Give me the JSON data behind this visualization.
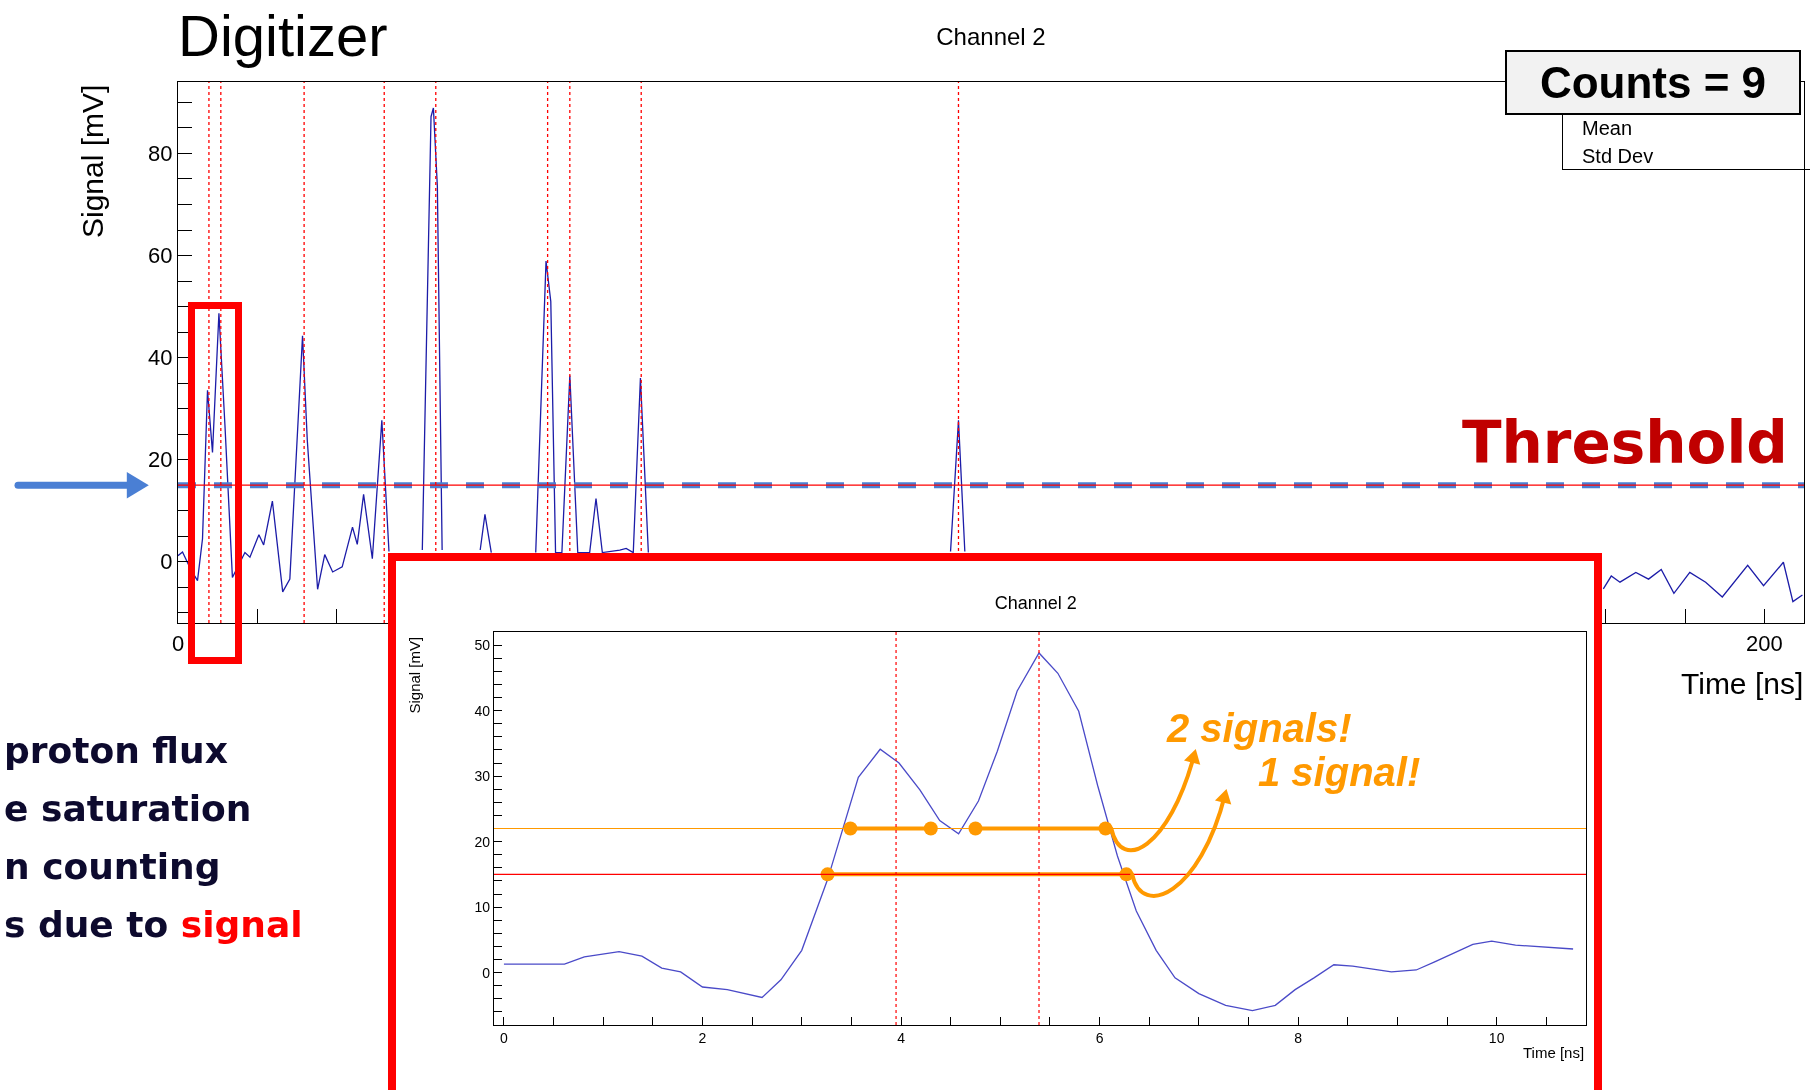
{
  "chart_data": [
    {
      "type": "line",
      "title": "Channel 2",
      "xlabel": "Time [ns]",
      "ylabel": "Signal [mV]",
      "xlim": [
        0,
        205
      ],
      "ylim": [
        -12,
        94
      ],
      "xticks": [
        0,
        {
          "value": 10,
          "label": null
        },
        {
          "value": 20,
          "label": null
        },
        {
          "value": 30,
          "label": null
        },
        {
          "value": 40,
          "label": null
        },
        {
          "value": 50,
          "label": null
        },
        {
          "value": 60,
          "label": null
        },
        {
          "value": 70,
          "label": null
        },
        {
          "value": 80,
          "label": null
        },
        {
          "value": 90,
          "label": null
        },
        {
          "value": 100,
          "label": null
        },
        {
          "value": 110,
          "label": null
        },
        {
          "value": 120,
          "label": null
        },
        {
          "value": 130,
          "label": null
        },
        {
          "value": 140,
          "label": null
        },
        {
          "value": 150,
          "label": null
        },
        {
          "value": 160,
          "label": null
        },
        {
          "value": 170,
          "label": null
        },
        {
          "value": 180,
          "label": null
        },
        {
          "value": 190,
          "label": null
        },
        200
      ],
      "yticks": [
        {
          "value": -10,
          "label": null
        },
        {
          "value": -5,
          "label": null
        },
        0,
        {
          "value": 5,
          "label": null
        },
        {
          "value": 10,
          "label": null
        },
        {
          "value": 15,
          "label": null
        },
        20,
        {
          "value": 25,
          "label": null
        },
        {
          "value": 30,
          "label": null
        },
        {
          "value": 35,
          "label": null
        },
        40,
        {
          "value": 45,
          "label": null
        },
        {
          "value": 50,
          "label": null
        },
        {
          "value": 55,
          "label": null
        },
        60,
        {
          "value": 65,
          "label": null
        },
        {
          "value": 70,
          "label": null
        },
        {
          "value": 75,
          "label": null
        },
        80,
        {
          "value": 85,
          "label": null
        },
        {
          "value": 90,
          "label": null
        }
      ],
      "series": [
        {
          "color": "#1c1ca8",
          "x": [
            0,
            0.57,
            1.64,
            2.46,
            3.09,
            3.72,
            4.35,
            5.16,
            5.92,
            6.86,
            8.44,
            9.07,
            10.2,
            10.8,
            11.9,
            13.2,
            14.1,
            15.7,
            16.3,
            17.6,
            18.5,
            19.5,
            20.7,
            22.0,
            22.6,
            23.4,
            24.5,
            25.7,
            26.6,
            28.5,
            30.8,
            31.9,
            32.2,
            32.7,
            33.3,
            35.5,
            38.1,
            38.7,
            39.5,
            42,
            45.1,
            46.4,
            47.0,
            47.6,
            48.4,
            49.4,
            50.4,
            51.9,
            52.7,
            53.5,
            55.7,
            56.5,
            57.4,
            58.3,
            59.3,
            90,
            97.4,
            98.4,
            99.2,
            150,
            179.7,
            180.7,
            181.8,
            183.8,
            185.4,
            187.0,
            188.6,
            190.6,
            192.6,
            194.7,
            197.9,
            199.9,
            202.4,
            203.6,
            204.8
          ],
          "values": [
            1.2,
            1.9,
            -1.6,
            -3.7,
            4.5,
            33.6,
            21.4,
            48.7,
            26.7,
            -3.1,
            1.8,
            0.9,
            5.3,
            3.3,
            11.9,
            -5.9,
            -3.4,
            44.3,
            23.8,
            -5.4,
            1.4,
            -2.0,
            -1.0,
            6.8,
            3.4,
            13.2,
            0.6,
            27.7,
            2,
            null,
            2.3,
            87.2,
            88.9,
            73.5,
            2.3,
            null,
            2.3,
            9.3,
            1.8,
            null,
            1.8,
            58.9,
            51,
            1.8,
            1.8,
            36.5,
            1.8,
            1.8,
            12.4,
            1.8,
            2.3,
            2.6,
            1.8,
            36.0,
            1.8,
            null,
            2.0,
            27.7,
            2.0,
            null,
            -5.3,
            -2.8,
            -4.0,
            -2.1,
            -3.4,
            -1.5,
            -6.2,
            -2.1,
            -4.0,
            -6.9,
            -0.7,
            -4.7,
            -0.1,
            -7.8,
            -6.5
          ]
        }
      ],
      "ref_lines": [
        {
          "axis": "y",
          "value": 15,
          "label": "Threshold",
          "color": "#4a7fd4",
          "line_style": "dashed"
        },
        {
          "axis": "y",
          "value": 15,
          "color": "#ff0000",
          "line_style": "solid"
        },
        {
          "axis": "x",
          "value": 3.9,
          "color": "#ff0000",
          "line_style": "dotted"
        },
        {
          "axis": "x",
          "value": 5.4,
          "color": "#ff0000",
          "line_style": "dotted"
        },
        {
          "axis": "x",
          "value": 15.9,
          "color": "#ff0000",
          "line_style": "dotted"
        },
        {
          "axis": "x",
          "value": 26.0,
          "color": "#ff0000",
          "line_style": "dotted"
        },
        {
          "axis": "x",
          "value": 32.5,
          "color": "#ff0000",
          "line_style": "dotted"
        },
        {
          "axis": "x",
          "value": 46.6,
          "color": "#ff0000",
          "line_style": "dotted"
        },
        {
          "axis": "x",
          "value": 49.4,
          "color": "#ff0000",
          "line_style": "dotted"
        },
        {
          "axis": "x",
          "value": 58.4,
          "color": "#ff0000",
          "line_style": "dotted"
        },
        {
          "axis": "x",
          "value": 98.4,
          "color": "#ff0000",
          "line_style": "dotted"
        }
      ],
      "annotations": [
        "Digitizer",
        "Counts = 9",
        "Mean",
        "Std Dev",
        "proton flux",
        "e saturation",
        "n counting",
        "s due to",
        "signal"
      ]
    },
    {
      "type": "line",
      "title": "Channel 2",
      "xlabel": "Time [ns]",
      "ylabel": "Signal [mV]",
      "xlim": [
        -0.1,
        10.9
      ],
      "ylim": [
        -8,
        52
      ],
      "xticks": [
        0,
        {
          "value": 0.5,
          "label": null
        },
        {
          "value": 1,
          "label": null
        },
        {
          "value": 1.5,
          "label": null
        },
        2,
        {
          "value": 2.5,
          "label": null
        },
        {
          "value": 3,
          "label": null
        },
        {
          "value": 3.5,
          "label": null
        },
        4,
        {
          "value": 4.5,
          "label": null
        },
        {
          "value": 5,
          "label": null
        },
        {
          "value": 5.5,
          "label": null
        },
        6,
        {
          "value": 6.5,
          "label": null
        },
        {
          "value": 7,
          "label": null
        },
        {
          "value": 7.5,
          "label": null
        },
        8,
        {
          "value": 8.5,
          "label": null
        },
        {
          "value": 9,
          "label": null
        },
        {
          "value": 9.5,
          "label": null
        },
        10,
        {
          "value": 10.5,
          "label": null
        }
      ],
      "yticks": [
        {
          "value": -6,
          "label": null
        },
        {
          "value": -4,
          "label": null
        },
        {
          "value": -2,
          "label": null
        },
        0,
        {
          "value": 2,
          "label": null
        },
        {
          "value": 4,
          "label": null
        },
        {
          "value": 6,
          "label": null
        },
        {
          "value": 8,
          "label": null
        },
        10,
        {
          "value": 12,
          "label": null
        },
        {
          "value": 14,
          "label": null
        },
        {
          "value": 16,
          "label": null
        },
        {
          "value": 18,
          "label": null
        },
        20,
        {
          "value": 22,
          "label": null
        },
        {
          "value": 24,
          "label": null
        },
        {
          "value": 26,
          "label": null
        },
        {
          "value": 28,
          "label": null
        },
        30,
        {
          "value": 32,
          "label": null
        },
        {
          "value": 34,
          "label": null
        },
        {
          "value": 36,
          "label": null
        },
        {
          "value": 38,
          "label": null
        },
        40,
        {
          "value": 42,
          "label": null
        },
        {
          "value": 44,
          "label": null
        },
        {
          "value": 46,
          "label": null
        },
        {
          "value": 48,
          "label": null
        },
        50
      ],
      "series": [
        {
          "color": "#4a4ac8",
          "x": [
            0,
            0.61,
            0.81,
            1.16,
            1.39,
            1.59,
            1.78,
            2.0,
            2.25,
            2.6,
            2.79,
            3.0,
            3.26,
            3.57,
            3.79,
            3.98,
            4.19,
            4.39,
            4.58,
            4.78,
            4.97,
            5.17,
            5.39,
            5.58,
            5.79,
            5.98,
            6.18,
            6.37,
            6.57,
            6.76,
            7.0,
            7.27,
            7.54,
            7.77,
            7.97,
            8.16,
            8.36,
            8.55,
            8.94,
            9.19,
            9.37,
            9.76,
            9.95,
            10.19,
            10.77
          ],
          "values": [
            1.3,
            1.3,
            2.4,
            3.2,
            2.5,
            0.7,
            0.1,
            -2.2,
            -2.6,
            -3.8,
            -1.1,
            3.4,
            14.2,
            29.8,
            34.1,
            32.0,
            27.9,
            23.2,
            21.2,
            26.2,
            33.8,
            43.0,
            48.8,
            45.7,
            39.9,
            28.6,
            17.8,
            9.4,
            3.4,
            -0.8,
            -3.2,
            -5.0,
            -5.8,
            -5.0,
            -2.6,
            -0.8,
            1.2,
            1.0,
            0.1,
            0.4,
            1.6,
            4.3,
            4.8,
            4.2,
            3.6
          ]
        },
        {
          "color": "#ff9900",
          "marker": "circle",
          "x": [
            3.49,
            4.3
          ],
          "values": [
            22,
            22
          ]
        },
        {
          "color": "#ff9900",
          "marker": "circle",
          "x": [
            4.75,
            6.06
          ],
          "values": [
            22,
            22
          ]
        },
        {
          "color": "#ff9900",
          "marker": "circle",
          "x": [
            3.26,
            6.27
          ],
          "values": [
            15,
            15
          ]
        }
      ],
      "ref_lines": [
        {
          "axis": "y",
          "value": 22,
          "color": "#ff9900",
          "line_style": "solid"
        },
        {
          "axis": "y",
          "value": 15,
          "color": "#ff0000",
          "line_style": "solid"
        },
        {
          "axis": "x",
          "value": 3.95,
          "color": "#ff0000",
          "line_style": "dotted"
        },
        {
          "axis": "x",
          "value": 5.39,
          "color": "#ff0000",
          "line_style": "dotted"
        }
      ],
      "annotations": [
        {
          "text": "2 signals!",
          "x": 6.06,
          "y": 22
        },
        {
          "text": "1 signal!",
          "x": 6.27,
          "y": 15
        }
      ]
    }
  ]
}
